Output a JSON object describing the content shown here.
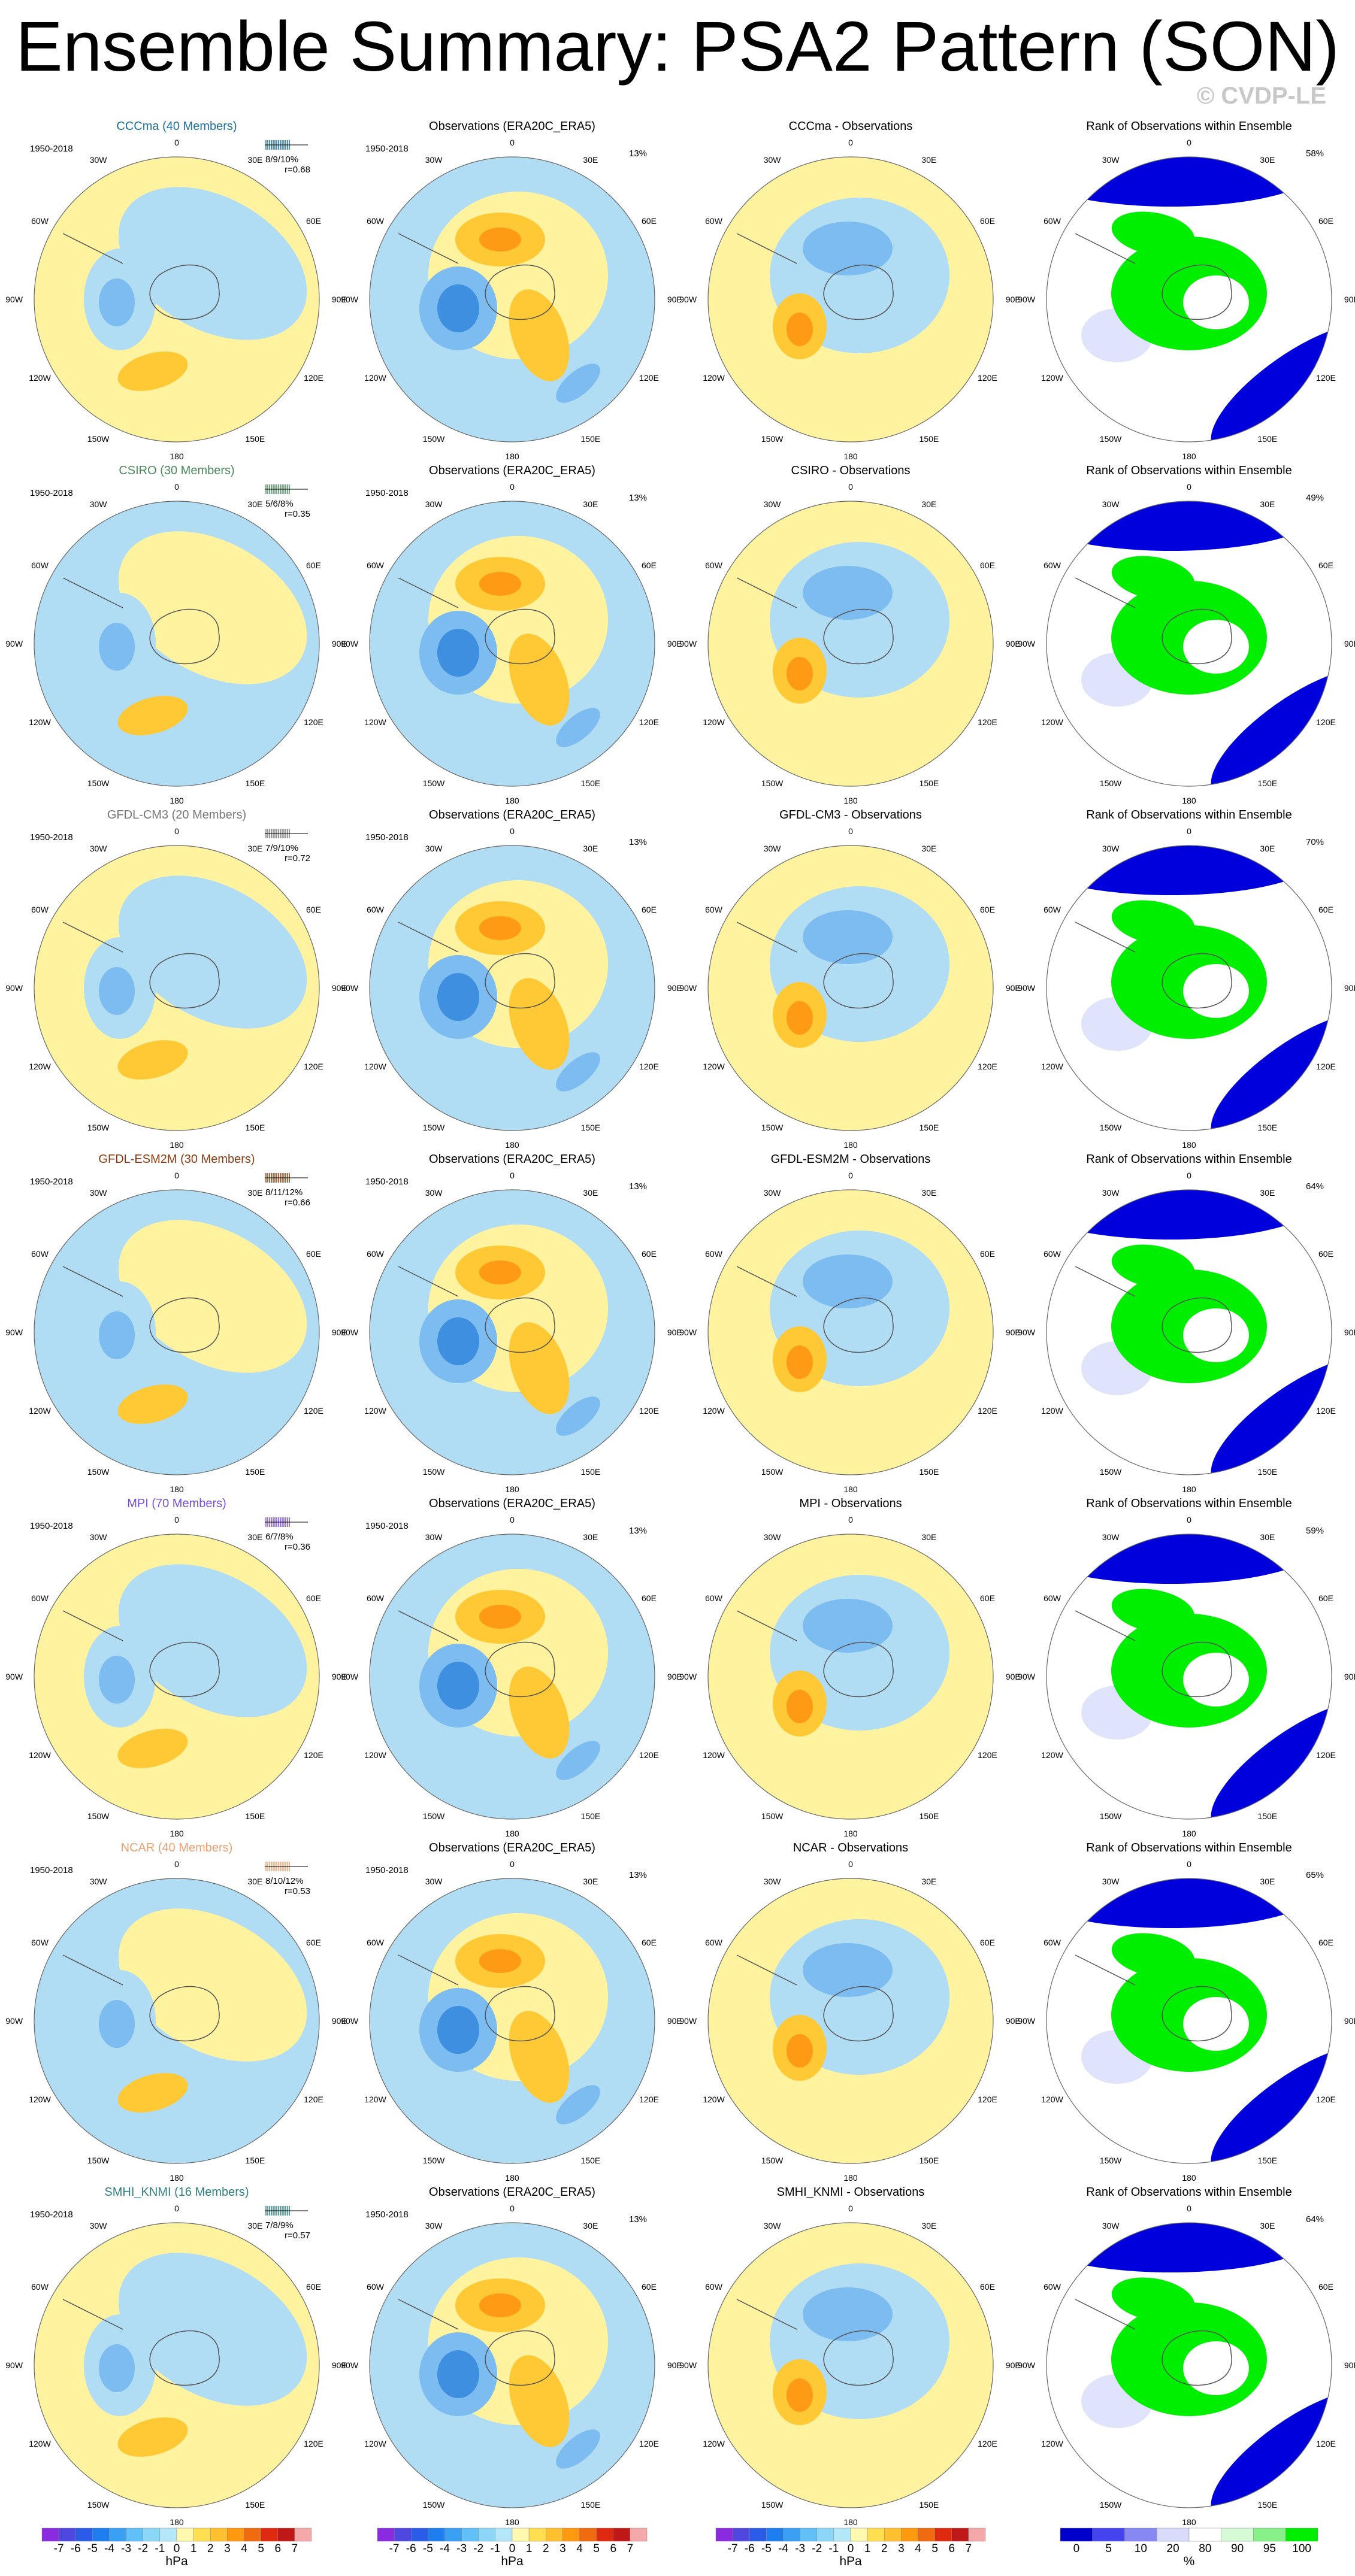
{
  "title": "Ensemble Summary: PSA2 Pattern (SON)",
  "watermark": "© CVDP-LE",
  "period": "1950-2018",
  "obs_title": "Observations (ERA20C_ERA5)",
  "obs_pct": "13%",
  "rank_title": "Rank of Observations within Ensemble",
  "lon_labels": {
    "top": "0",
    "tl": "30W",
    "tr": "30E",
    "ul": "60W",
    "ur": "60E",
    "l": "90W",
    "r": "90E",
    "ll": "120W",
    "lr": "120E",
    "bl": "150W",
    "br": "150E",
    "bottom": "180"
  },
  "colors": {
    "neg3": "#3e8fe0",
    "neg2": "#7cbcf0",
    "neg1": "#b0dcf4",
    "pos1": "#fff3a0",
    "pos2": "#ffc835",
    "pos3": "#ff9a14",
    "rank_blue": "#0000dd",
    "rank_green": "#00ee00"
  },
  "rows": [
    {
      "model": "CCCma (40 Members)",
      "model_color": "#1b6f9e",
      "stats": "8/9/10%",
      "r": "r=0.68",
      "diff_title": "CCCma - Observations",
      "rank_pct": "58%"
    },
    {
      "model": "CSIRO (30 Members)",
      "model_color": "#4a8a5a",
      "stats": "5/6/8%",
      "r": "r=0.35",
      "diff_title": "CSIRO - Observations",
      "rank_pct": "49%"
    },
    {
      "model": "GFDL-CM3 (20 Members)",
      "model_color": "#777777",
      "stats": "7/9/10%",
      "r": "r=0.72",
      "diff_title": "GFDL-CM3 - Observations",
      "rank_pct": "70%"
    },
    {
      "model": "GFDL-ESM2M (30 Members)",
      "model_color": "#8b3a0f",
      "stats": "8/11/12%",
      "r": "r=0.66",
      "diff_title": "GFDL-ESM2M - Observations",
      "rank_pct": "64%"
    },
    {
      "model": "MPI (70 Members)",
      "model_color": "#7a4fd6",
      "stats": "6/7/8%",
      "r": "r=0.36",
      "diff_title": "MPI - Observations",
      "rank_pct": "59%"
    },
    {
      "model": "NCAR (40 Members)",
      "model_color": "#e8a070",
      "stats": "8/10/12%",
      "r": "r=0.53",
      "diff_title": "NCAR - Observations",
      "rank_pct": "65%"
    },
    {
      "model": "SMHI_KNMI (16 Members)",
      "model_color": "#2e7f7f",
      "stats": "7/8/9%",
      "r": "r=0.57",
      "diff_title": "SMHI_KNMI - Observations",
      "rank_pct": "64%"
    }
  ],
  "colorbar": {
    "hpa_labels": [
      "-7",
      "-6",
      "-5",
      "-4",
      "-3",
      "-2",
      "-1",
      "0",
      "1",
      "2",
      "3",
      "4",
      "5",
      "6",
      "7"
    ],
    "hpa_colors": [
      "#8a2be2",
      "#5046e0",
      "#2a5ce8",
      "#1e7ef0",
      "#3aa0f4",
      "#62c0f8",
      "#8cd6f8",
      "#b4e8f8",
      "#fff9b0",
      "#ffdf50",
      "#ffc030",
      "#ff9a10",
      "#f06a10",
      "#e02a10",
      "#c01818",
      "#f4a8a8"
    ],
    "unit_hpa": "hPa",
    "rank_labels": [
      "0",
      "5",
      "10",
      "20",
      "80",
      "90",
      "95",
      "100"
    ],
    "rank_colors": [
      "#0000cc",
      "#4444ee",
      "#8888f4",
      "#d8dcfa",
      "#ffffff",
      "#d6fad6",
      "#88f088",
      "#00ee00"
    ],
    "unit_rank": "%"
  }
}
